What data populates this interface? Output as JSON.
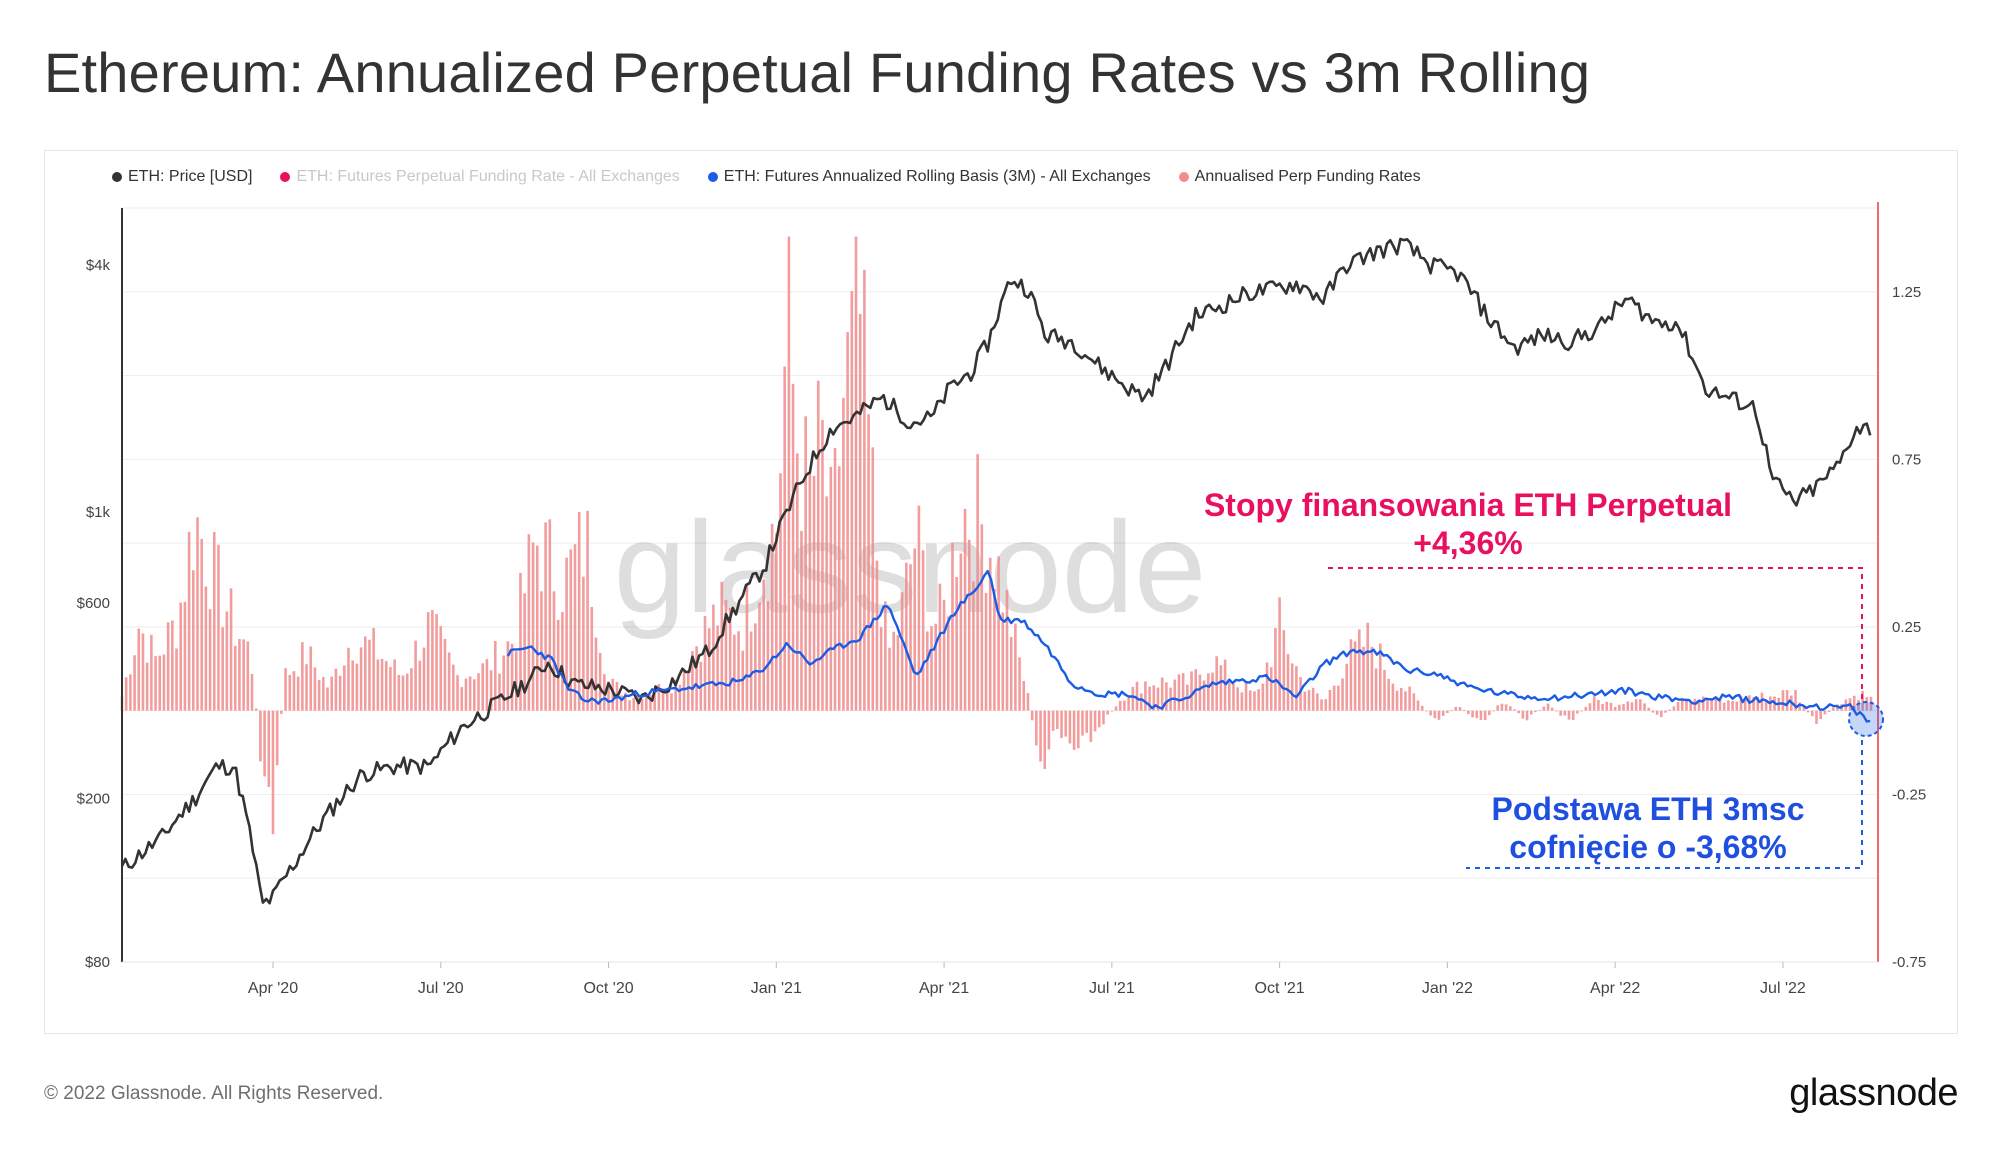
{
  "title": "Ethereum: Annualized Perpetual Funding Rates vs 3m Rolling",
  "legend": [
    {
      "label": "ETH: Price [USD]",
      "color": "#333333",
      "muted": false
    },
    {
      "label": "ETH: Futures Perpetual Funding Rate - All Exchanges",
      "color": "#e8105f",
      "muted": true
    },
    {
      "label": "ETH: Futures Annualized Rolling Basis (3M) - All Exchanges",
      "color": "#1a5ce6",
      "muted": false
    },
    {
      "label": "Annualised Perp Funding Rates",
      "color": "#f08c8c",
      "muted": false
    }
  ],
  "annotations": {
    "funding_line1": "Stopy finansowania ETH Perpetual",
    "funding_line2": "+4,36%",
    "basis_line1": "Podstawa ETH 3msc",
    "basis_line2": "cofnięcie o -3,68%"
  },
  "watermark": "glassnode",
  "footer": {
    "copyright": "© 2022 Glassnode. All Rights Reserved.",
    "brand": "glassnode"
  },
  "chart_data": {
    "type": "line",
    "x_tick_labels": [
      "Apr '20",
      "Jul '20",
      "Oct '20",
      "Jan '21",
      "Apr '21",
      "Jul '21",
      "Oct '21",
      "Jan '22",
      "Apr '22",
      "Jul '22"
    ],
    "x_tick_months": [
      3,
      6,
      9,
      12,
      15,
      18,
      21,
      24,
      27,
      30
    ],
    "x_range_months": [
      0.3,
      31.7
    ],
    "left_axis": {
      "label": "",
      "scale": "log",
      "ticks": [
        80,
        200,
        600,
        1000,
        4000
      ],
      "tick_labels": [
        "$80",
        "$200",
        "$600",
        "$1k",
        "$4k"
      ],
      "range": [
        80,
        5500
      ]
    },
    "right_axis": {
      "label": "",
      "scale": "linear",
      "ticks": [
        -0.75,
        -0.25,
        0.25,
        0.75,
        1.25
      ],
      "tick_labels": [
        "-0.75",
        "-0.25",
        "0.25",
        "0.75",
        "1.25"
      ],
      "range": [
        -0.75,
        1.5
      ]
    },
    "series": [
      {
        "name": "ETH: Price [USD]",
        "axis": "left",
        "color": "#333333",
        "style": "line",
        "x": [
          0.3,
          1,
          1.6,
          2,
          2.3,
          2.6,
          2.8,
          3.0,
          3.4,
          4,
          4.6,
          5.2,
          5.8,
          6.4,
          7.0,
          7.6,
          7.9,
          8.4,
          9,
          9.6,
          10.2,
          10.8,
          11.3,
          11.8,
          12.2,
          12.6,
          13.0,
          13.4,
          13.9,
          14.4,
          14.8,
          15.1,
          15.5,
          15.8,
          16.2,
          16.5,
          16.8,
          17.3,
          17.8,
          18.3,
          18.6,
          19.0,
          19.5,
          20.0,
          20.4,
          20.9,
          21.3,
          21.8,
          22.2,
          22.7,
          23.2,
          23.7,
          24.2,
          24.7,
          25.2,
          25.7,
          26.2,
          26.7,
          27.2,
          27.7,
          28.1,
          28.6,
          29.0,
          29.5,
          29.8,
          30.2,
          30.6,
          31.0,
          31.3,
          31.6
        ],
        "y": [
          135,
          160,
          200,
          240,
          240,
          160,
          110,
          115,
          140,
          185,
          230,
          240,
          240,
          300,
          340,
          390,
          430,
          380,
          370,
          350,
          390,
          460,
          590,
          740,
          1000,
          1300,
          1600,
          1700,
          1900,
          1650,
          1700,
          2000,
          2200,
          2600,
          3700,
          3500,
          2700,
          2600,
          2250,
          2000,
          1900,
          2300,
          3000,
          3200,
          3400,
          3500,
          3600,
          3300,
          4000,
          4300,
          4500,
          4000,
          3800,
          3000,
          2500,
          2700,
          2600,
          2800,
          3300,
          2900,
          2900,
          2000,
          1900,
          1800,
          1200,
          1050,
          1150,
          1300,
          1600,
          1600
        ]
      },
      {
        "name": "ETH: Futures Annualized Rolling Basis (3M) - All Exchanges",
        "axis": "right",
        "color": "#1a5ce6",
        "style": "line",
        "x": [
          7.2,
          7.6,
          8.0,
          8.3,
          8.6,
          9.0,
          9.5,
          10.0,
          10.5,
          11.0,
          11.4,
          11.8,
          12.2,
          12.6,
          13.0,
          13.5,
          14.0,
          14.5,
          15.0,
          15.2,
          15.5,
          15.8,
          16.0,
          16.4,
          16.8,
          17.3,
          17.8,
          18.3,
          18.8,
          19.3,
          19.8,
          20.3,
          20.8,
          21.3,
          21.8,
          22.3,
          22.8,
          23.3,
          23.8,
          24.4,
          25.0,
          25.5,
          26.0,
          26.6,
          27.2,
          27.8,
          28.4,
          29.0,
          29.6,
          30.2,
          30.8,
          31.2,
          31.6
        ],
        "y": [
          0.17,
          0.19,
          0.15,
          0.06,
          0.03,
          0.03,
          0.05,
          0.06,
          0.07,
          0.08,
          0.09,
          0.13,
          0.2,
          0.14,
          0.18,
          0.22,
          0.32,
          0.1,
          0.24,
          0.3,
          0.35,
          0.42,
          0.27,
          0.27,
          0.2,
          0.08,
          0.05,
          0.05,
          0.01,
          0.04,
          0.08,
          0.09,
          0.1,
          0.04,
          0.14,
          0.18,
          0.17,
          0.12,
          0.11,
          0.07,
          0.05,
          0.04,
          0.04,
          0.05,
          0.06,
          0.04,
          0.03,
          0.04,
          0.03,
          0.02,
          0.01,
          0.01,
          -0.04
        ]
      },
      {
        "name": "Annualised Perp Funding Rates",
        "axis": "right",
        "color": "#f08c8c",
        "style": "bars",
        "x": [
          0.3,
          0.6,
          0.9,
          1.3,
          1.6,
          2.0,
          2.3,
          2.6,
          2.8,
          3.0,
          3.2,
          3.6,
          4.0,
          4.4,
          4.8,
          5.3,
          5.8,
          6.3,
          6.8,
          7.3,
          7.7,
          8.2,
          8.6,
          9.0,
          9.4,
          9.8,
          10.2,
          10.6,
          11.0,
          11.4,
          11.8,
          12.0,
          12.2,
          12.4,
          12.6,
          12.8,
          13.0,
          13.2,
          13.5,
          13.8,
          14.0,
          14.2,
          14.5,
          14.8,
          15.0,
          15.3,
          15.6,
          15.9,
          16.2,
          16.5,
          16.7,
          17.0,
          17.4,
          17.8,
          18.2,
          18.6,
          19.0,
          19.4,
          19.8,
          20.2,
          20.6,
          21.0,
          21.4,
          21.8,
          22.2,
          22.6,
          23.0,
          23.4,
          23.8,
          24.2,
          24.6,
          25.0,
          25.4,
          25.8,
          26.2,
          26.6,
          27.0,
          27.4,
          27.8,
          28.2,
          28.6,
          29.0,
          29.4,
          29.8,
          30.2,
          30.6,
          31.0,
          31.4,
          31.6
        ],
        "y": [
          0.05,
          0.3,
          0.18,
          0.32,
          0.68,
          0.45,
          0.3,
          0.2,
          -0.18,
          -0.42,
          0.12,
          0.2,
          0.08,
          0.25,
          0.22,
          0.12,
          0.3,
          0.12,
          0.15,
          0.25,
          0.6,
          0.45,
          0.6,
          0.1,
          0.05,
          0.07,
          0.1,
          0.25,
          0.35,
          0.3,
          0.55,
          0.65,
          1.35,
          0.9,
          0.75,
          0.95,
          0.6,
          1.1,
          1.35,
          0.55,
          0.2,
          0.3,
          0.62,
          0.3,
          0.35,
          0.7,
          0.68,
          0.55,
          0.3,
          0.05,
          -0.2,
          -0.08,
          -0.15,
          -0.05,
          0.05,
          0.1,
          0.1,
          0.1,
          0.18,
          0.1,
          0.05,
          0.3,
          0.1,
          0.03,
          0.18,
          0.25,
          0.12,
          0.05,
          -0.04,
          0.02,
          -0.05,
          0.04,
          -0.03,
          0.02,
          -0.04,
          0.04,
          0.02,
          0.05,
          -0.03,
          0.05,
          0.04,
          0.03,
          0.05,
          0.05,
          0.07,
          -0.05,
          0.03,
          0.06,
          0.04
        ]
      }
    ]
  }
}
